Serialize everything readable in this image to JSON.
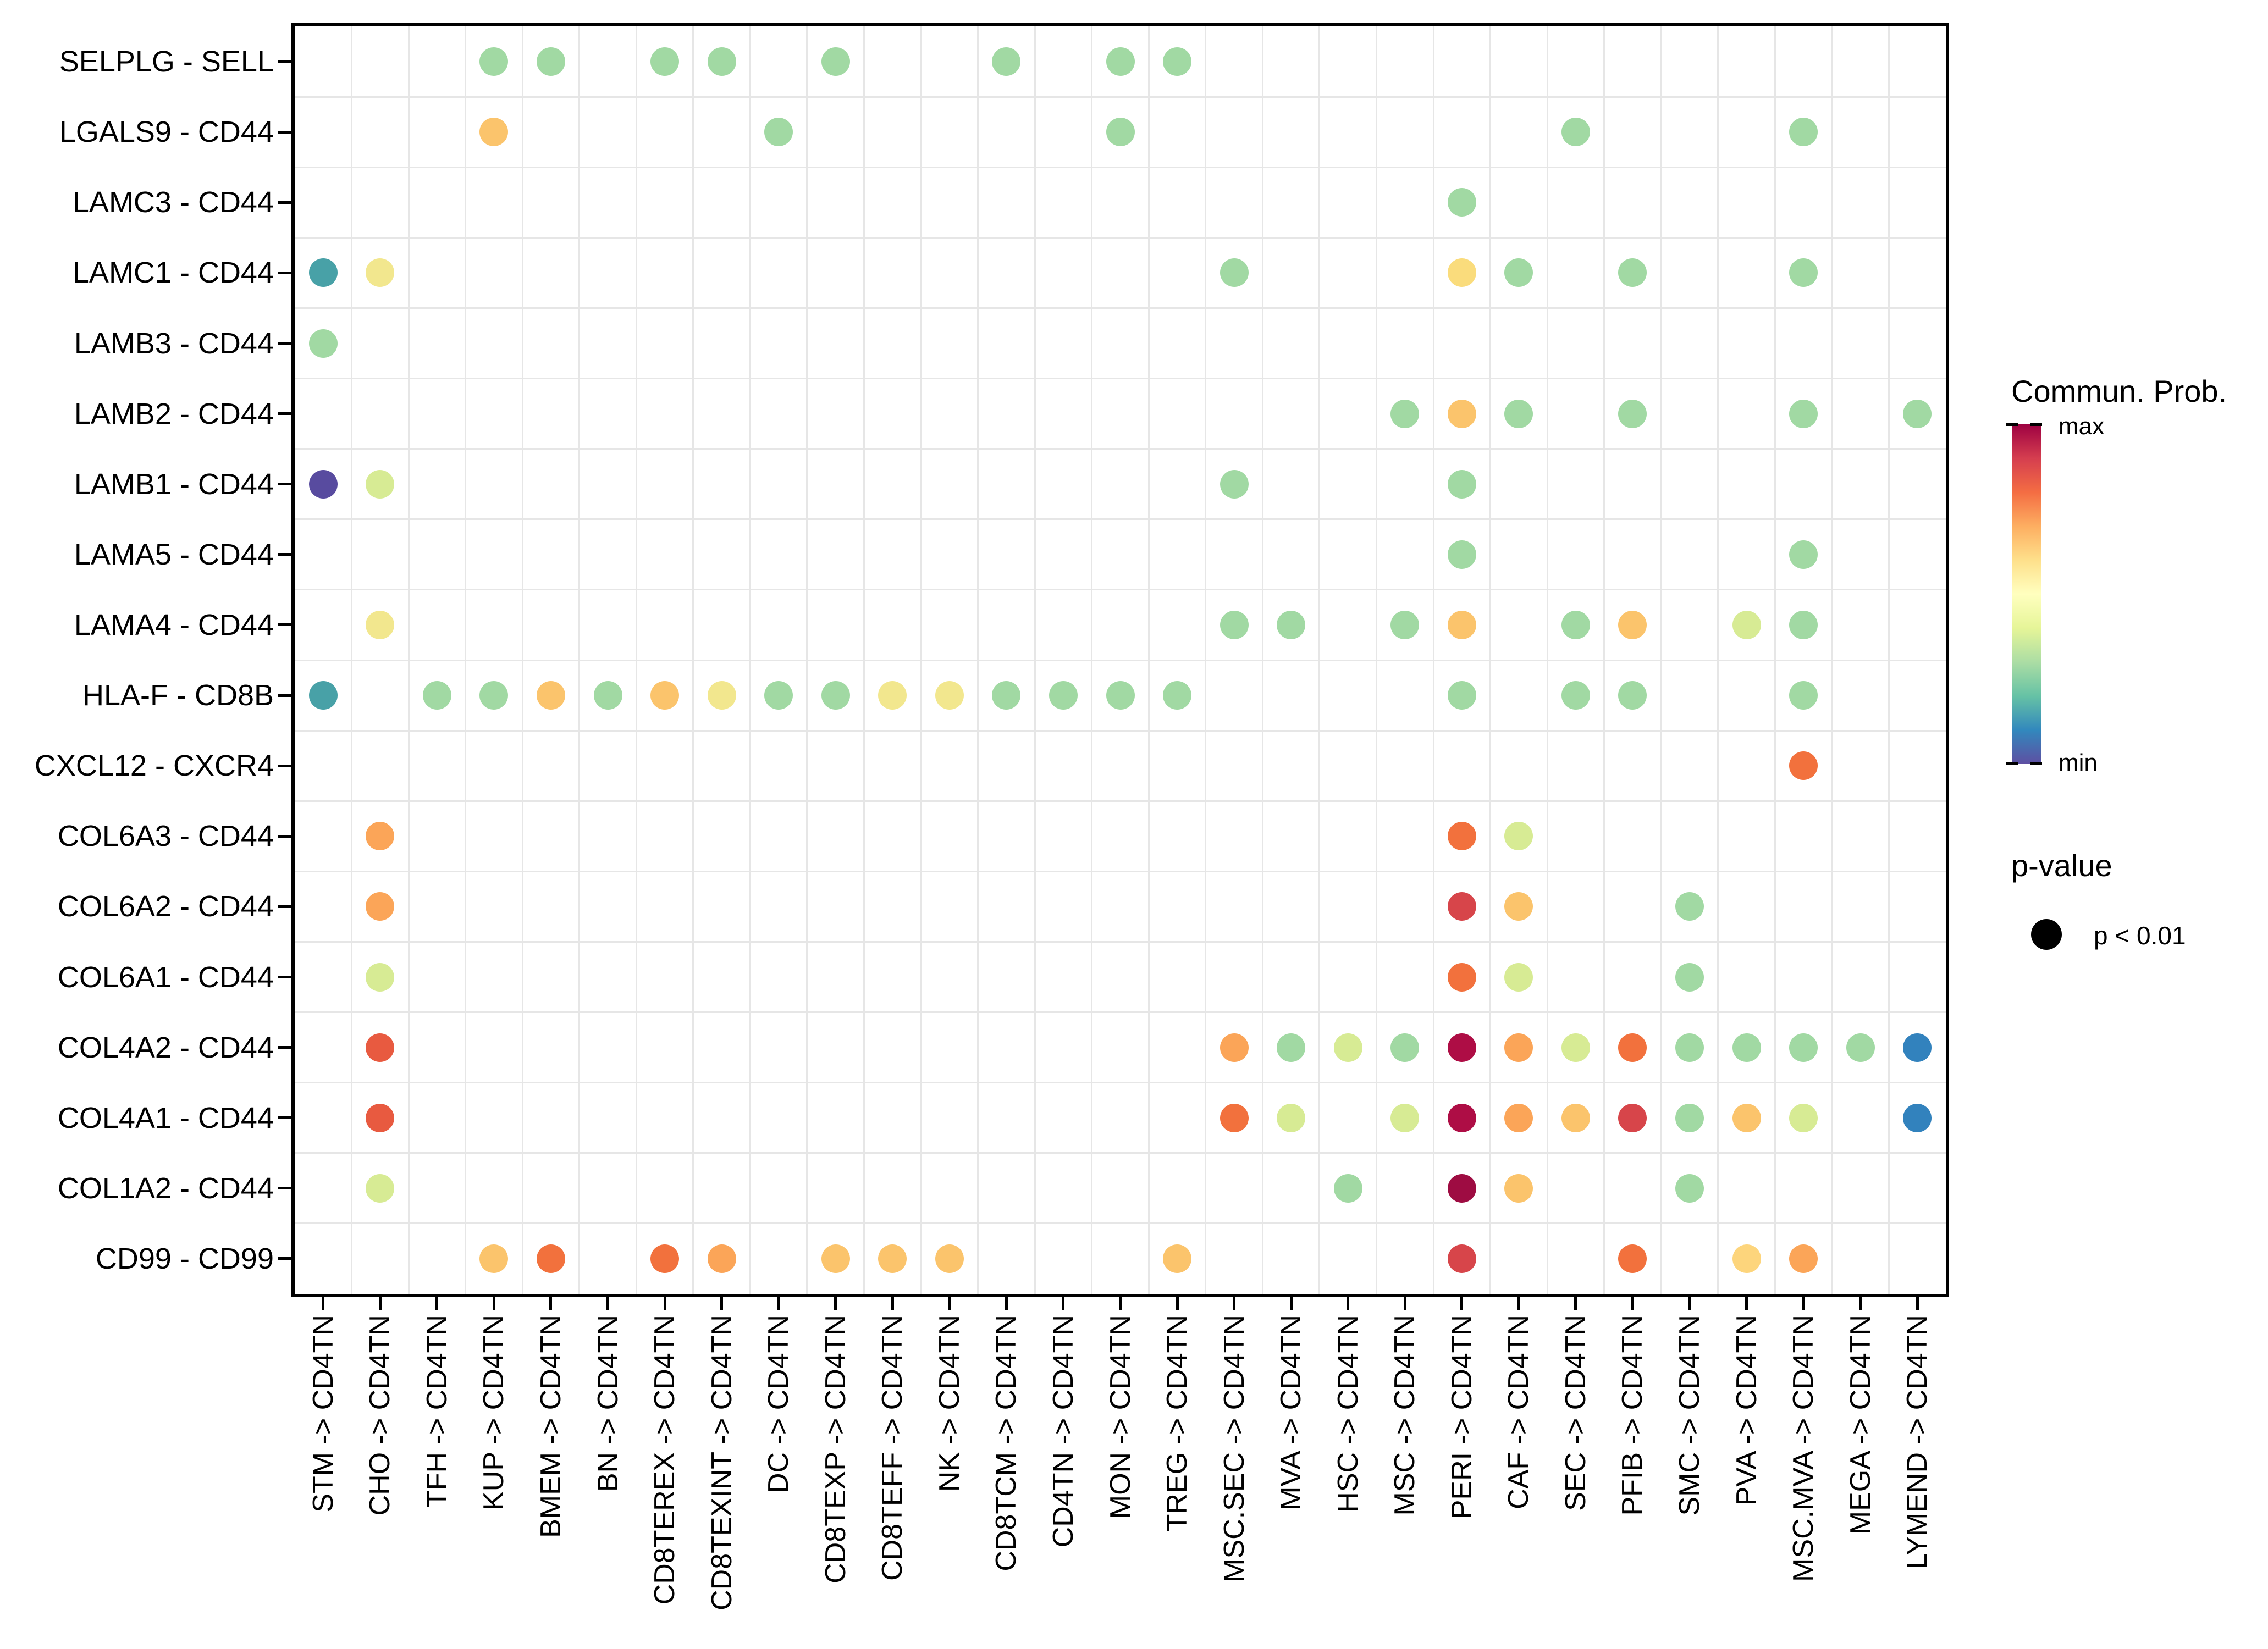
{
  "chart_data": {
    "type": "scatter",
    "title": "",
    "grid": true,
    "legend_position": "right",
    "x_label_rotation": 90,
    "x_categories": [
      "STM -> CD4TN",
      "CHO -> CD4TN",
      "TFH -> CD4TN",
      "KUP -> CD4TN",
      "BMEM -> CD4TN",
      "BN -> CD4TN",
      "CD8TEREX -> CD4TN",
      "CD8TEXINT -> CD4TN",
      "DC -> CD4TN",
      "CD8TEXP -> CD4TN",
      "CD8TEFF -> CD4TN",
      "NK -> CD4TN",
      "CD8TCM -> CD4TN",
      "CD4TN -> CD4TN",
      "MON -> CD4TN",
      "TREG -> CD4TN",
      "MSC.SEC -> CD4TN",
      "MVA -> CD4TN",
      "HSC -> CD4TN",
      "MSC -> CD4TN",
      "PERI -> CD4TN",
      "CAF -> CD4TN",
      "SEC -> CD4TN",
      "PFIB -> CD4TN",
      "SMC -> CD4TN",
      "PVA -> CD4TN",
      "MSC.MVA -> CD4TN",
      "MEGA -> CD4TN",
      "LYMEND -> CD4TN"
    ],
    "y_categories": [
      "SELPLG - SELL",
      "LGALS9 - CD44",
      "LAMC3 - CD44",
      "LAMC1 - CD44",
      "LAMB3 - CD44",
      "LAMB2 - CD44",
      "LAMB1 - CD44",
      "LAMA5 - CD44",
      "LAMA4 - CD44",
      "HLA-F - CD8B",
      "CXCL12 - CXCR4",
      "COL6A3 - CD44",
      "COL6A2 - CD44",
      "COL6A1 - CD44",
      "COL4A2 - CD44",
      "COL4A1 - CD44",
      "COL1A2 - CD44",
      "CD99 - CD99"
    ],
    "color_encodes": "Commun. Prob. (min to max, Spectral reversed)",
    "size_encodes": "p-value (all dots shown: p < 0.01)",
    "palette": {
      "green": "#A1D9A3",
      "teal": "#48A1A7",
      "purple": "#584B9F",
      "yellow_green": "#D7EB94",
      "pale_yellow": "#F2E78E",
      "yellow": "#FADC7C",
      "light_orange": "#FBC46C",
      "pale_orange": "#FDD57C",
      "orange": "#FBA558",
      "orange_red": "#F2713D",
      "red_orange": "#E85A40",
      "red": "#D7454A",
      "crimson": "#AE0D45",
      "dark_crimson": "#9E0C42",
      "blue": "#3282BD"
    },
    "rows": [
      {
        "label": "SELPLG - SELL",
        "dots": [
          {
            "x": "KUP",
            "color": "green"
          },
          {
            "x": "BMEM",
            "color": "green"
          },
          {
            "x": "CD8TEREX",
            "color": "green"
          },
          {
            "x": "CD8TEXINT",
            "color": "green"
          },
          {
            "x": "CD8TEXP",
            "color": "green"
          },
          {
            "x": "CD8TCM",
            "color": "green"
          },
          {
            "x": "MON",
            "color": "green"
          },
          {
            "x": "TREG",
            "color": "green"
          }
        ]
      },
      {
        "label": "LGALS9 - CD44",
        "dots": [
          {
            "x": "KUP",
            "color": "light_orange"
          },
          {
            "x": "DC",
            "color": "green"
          },
          {
            "x": "MON",
            "color": "green"
          },
          {
            "x": "SEC",
            "color": "green"
          },
          {
            "x": "MSC.MVA",
            "color": "green"
          }
        ]
      },
      {
        "label": "LAMC3 - CD44",
        "dots": [
          {
            "x": "PERI",
            "color": "green"
          }
        ]
      },
      {
        "label": "LAMC1 - CD44",
        "dots": [
          {
            "x": "STM",
            "color": "teal"
          },
          {
            "x": "CHO",
            "color": "pale_yellow"
          },
          {
            "x": "MSC.SEC",
            "color": "green"
          },
          {
            "x": "PERI",
            "color": "yellow"
          },
          {
            "x": "CAF",
            "color": "green"
          },
          {
            "x": "PFIB",
            "color": "green"
          },
          {
            "x": "MSC.MVA",
            "color": "green"
          }
        ]
      },
      {
        "label": "LAMB3 - CD44",
        "dots": [
          {
            "x": "STM",
            "color": "green"
          }
        ]
      },
      {
        "label": "LAMB2 - CD44",
        "dots": [
          {
            "x": "MSC",
            "color": "green"
          },
          {
            "x": "PERI",
            "color": "light_orange"
          },
          {
            "x": "CAF",
            "color": "green"
          },
          {
            "x": "PFIB",
            "color": "green"
          },
          {
            "x": "MSC.MVA",
            "color": "green"
          },
          {
            "x": "LYMEND",
            "color": "green"
          }
        ]
      },
      {
        "label": "LAMB1 - CD44",
        "dots": [
          {
            "x": "STM",
            "color": "purple"
          },
          {
            "x": "CHO",
            "color": "yellow_green"
          },
          {
            "x": "MSC.SEC",
            "color": "green"
          },
          {
            "x": "PERI",
            "color": "green"
          }
        ]
      },
      {
        "label": "LAMA5 - CD44",
        "dots": [
          {
            "x": "PERI",
            "color": "green"
          },
          {
            "x": "MSC.MVA",
            "color": "green"
          }
        ]
      },
      {
        "label": "LAMA4 - CD44",
        "dots": [
          {
            "x": "CHO",
            "color": "pale_yellow"
          },
          {
            "x": "MSC.SEC",
            "color": "green"
          },
          {
            "x": "MVA",
            "color": "green"
          },
          {
            "x": "MSC",
            "color": "green"
          },
          {
            "x": "PERI",
            "color": "light_orange"
          },
          {
            "x": "SEC",
            "color": "green"
          },
          {
            "x": "PFIB",
            "color": "light_orange"
          },
          {
            "x": "PVA",
            "color": "yellow_green"
          },
          {
            "x": "MSC.MVA",
            "color": "green"
          }
        ]
      },
      {
        "label": "HLA-F - CD8B",
        "dots": [
          {
            "x": "STM",
            "color": "teal"
          },
          {
            "x": "TFH",
            "color": "green"
          },
          {
            "x": "KUP",
            "color": "green"
          },
          {
            "x": "BMEM",
            "color": "light_orange"
          },
          {
            "x": "BN",
            "color": "green"
          },
          {
            "x": "CD8TEREX",
            "color": "light_orange"
          },
          {
            "x": "CD8TEXINT",
            "color": "pale_yellow"
          },
          {
            "x": "DC",
            "color": "green"
          },
          {
            "x": "CD8TEXP",
            "color": "green"
          },
          {
            "x": "CD8TEFF",
            "color": "pale_yellow"
          },
          {
            "x": "NK",
            "color": "pale_yellow"
          },
          {
            "x": "CD8TCM",
            "color": "green"
          },
          {
            "x": "CD4TN",
            "color": "green"
          },
          {
            "x": "MON",
            "color": "green"
          },
          {
            "x": "TREG",
            "color": "green"
          },
          {
            "x": "PERI",
            "color": "green"
          },
          {
            "x": "SEC",
            "color": "green"
          },
          {
            "x": "PFIB",
            "color": "green"
          },
          {
            "x": "MSC.MVA",
            "color": "green"
          }
        ]
      },
      {
        "label": "CXCL12 - CXCR4",
        "dots": [
          {
            "x": "MSC.MVA",
            "color": "orange_red"
          }
        ]
      },
      {
        "label": "COL6A3 - CD44",
        "dots": [
          {
            "x": "CHO",
            "color": "orange"
          },
          {
            "x": "PERI",
            "color": "orange_red"
          },
          {
            "x": "CAF",
            "color": "yellow_green"
          }
        ]
      },
      {
        "label": "COL6A2 - CD44",
        "dots": [
          {
            "x": "CHO",
            "color": "orange"
          },
          {
            "x": "PERI",
            "color": "red"
          },
          {
            "x": "CAF",
            "color": "light_orange"
          },
          {
            "x": "SMC",
            "color": "green"
          }
        ]
      },
      {
        "label": "COL6A1 - CD44",
        "dots": [
          {
            "x": "CHO",
            "color": "yellow_green"
          },
          {
            "x": "PERI",
            "color": "orange_red"
          },
          {
            "x": "CAF",
            "color": "yellow_green"
          },
          {
            "x": "SMC",
            "color": "green"
          }
        ]
      },
      {
        "label": "COL4A2 - CD44",
        "dots": [
          {
            "x": "CHO",
            "color": "red_orange"
          },
          {
            "x": "MSC.SEC",
            "color": "orange"
          },
          {
            "x": "MVA",
            "color": "green"
          },
          {
            "x": "HSC",
            "color": "yellow_green"
          },
          {
            "x": "MSC",
            "color": "green"
          },
          {
            "x": "PERI",
            "color": "crimson"
          },
          {
            "x": "CAF",
            "color": "orange"
          },
          {
            "x": "SEC",
            "color": "yellow_green"
          },
          {
            "x": "PFIB",
            "color": "orange_red"
          },
          {
            "x": "SMC",
            "color": "green"
          },
          {
            "x": "PVA",
            "color": "green"
          },
          {
            "x": "MSC.MVA",
            "color": "green"
          },
          {
            "x": "MEGA",
            "color": "green"
          },
          {
            "x": "LYMEND",
            "color": "blue"
          }
        ]
      },
      {
        "label": "COL4A1 - CD44",
        "dots": [
          {
            "x": "CHO",
            "color": "red_orange"
          },
          {
            "x": "MSC.SEC",
            "color": "orange_red"
          },
          {
            "x": "MVA",
            "color": "yellow_green"
          },
          {
            "x": "MSC",
            "color": "yellow_green"
          },
          {
            "x": "PERI",
            "color": "crimson"
          },
          {
            "x": "CAF",
            "color": "orange"
          },
          {
            "x": "SEC",
            "color": "light_orange"
          },
          {
            "x": "PFIB",
            "color": "red"
          },
          {
            "x": "SMC",
            "color": "green"
          },
          {
            "x": "PVA",
            "color": "light_orange"
          },
          {
            "x": "MSC.MVA",
            "color": "yellow_green"
          },
          {
            "x": "LYMEND",
            "color": "blue"
          }
        ]
      },
      {
        "label": "COL1A2 - CD44",
        "dots": [
          {
            "x": "CHO",
            "color": "yellow_green"
          },
          {
            "x": "HSC",
            "color": "green"
          },
          {
            "x": "PERI",
            "color": "dark_crimson"
          },
          {
            "x": "CAF",
            "color": "light_orange"
          },
          {
            "x": "SMC",
            "color": "green"
          }
        ]
      },
      {
        "label": "CD99 - CD99",
        "dots": [
          {
            "x": "KUP",
            "color": "light_orange"
          },
          {
            "x": "BMEM",
            "color": "orange_red"
          },
          {
            "x": "CD8TEREX",
            "color": "orange_red"
          },
          {
            "x": "CD8TEXINT",
            "color": "orange"
          },
          {
            "x": "CD8TEXP",
            "color": "light_orange"
          },
          {
            "x": "CD8TEFF",
            "color": "light_orange"
          },
          {
            "x": "NK",
            "color": "light_orange"
          },
          {
            "x": "TREG",
            "color": "light_orange"
          },
          {
            "x": "PERI",
            "color": "red"
          },
          {
            "x": "PFIB",
            "color": "orange_red"
          },
          {
            "x": "PVA",
            "color": "pale_orange"
          },
          {
            "x": "MSC.MVA",
            "color": "orange"
          }
        ]
      }
    ]
  },
  "legend": {
    "colorbar_title": "Commun. Prob.",
    "colorbar_max_label": "max",
    "colorbar_min_label": "min",
    "colorbar_stops": [
      "#9E0142",
      "#D53E4F",
      "#F46D43",
      "#FDAE61",
      "#FEE08B",
      "#FFFFBF",
      "#E6F598",
      "#ABDDA4",
      "#66C2A5",
      "#3288BD",
      "#5E4FA2"
    ],
    "pvalue_title": "p-value",
    "pvalue_dot_label": "p < 0.01"
  }
}
